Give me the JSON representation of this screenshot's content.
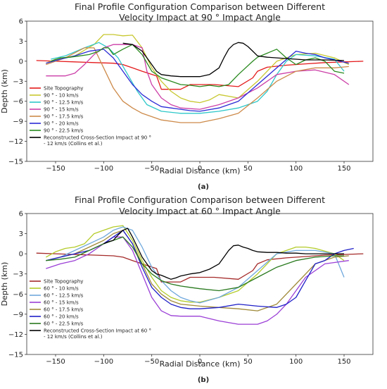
{
  "chart_data": [
    {
      "type": "line",
      "title": "Final Profile Configuration Comparison between Different Velocity Impact at 90 ° Impact Angle",
      "title_lines": [
        "Final Profile Configuration Comparison between Different",
        "Velocity Impact at 90 ° Impact Angle"
      ],
      "xlabel": "Radial Distance (km)",
      "ylabel": "Depth (km)",
      "xlim": [
        -180,
        180
      ],
      "ylim": [
        -15,
        6
      ],
      "xticks": [
        -150,
        -100,
        -50,
        0,
        50,
        100,
        150
      ],
      "yticks": [
        6,
        3,
        0,
        -3,
        -6,
        -9,
        -12,
        -15
      ],
      "grid": false,
      "legend_position": "lower-left",
      "caption": "(a)",
      "series": [
        {
          "name": "Site Topography",
          "color": "#e41a1c",
          "x": [
            -170,
            -150,
            -130,
            -110,
            -90,
            -80,
            -70,
            -60,
            -45,
            -40,
            -20,
            -10,
            15,
            40,
            55,
            60,
            70,
            90,
            110,
            130,
            150,
            170
          ],
          "y": [
            0.1,
            0.0,
            -0.1,
            -0.2,
            -0.3,
            -0.5,
            -1.0,
            -1.5,
            -2.2,
            -4.2,
            -4.2,
            -3.5,
            -3.5,
            -3.8,
            -2.5,
            -1.5,
            -0.9,
            -0.6,
            -0.4,
            -0.2,
            -0.1,
            0.0
          ]
        },
        {
          "name": "90 ° - 10 km/s",
          "color": "#c8c832",
          "x": [
            -160,
            -150,
            -130,
            -110,
            -100,
            -90,
            -80,
            -70,
            -60,
            -50,
            -40,
            -30,
            -20,
            -10,
            0,
            10,
            20,
            40,
            60,
            80,
            100,
            120,
            140,
            155
          ],
          "y": [
            -0.3,
            0.3,
            0.8,
            2.5,
            4.0,
            4.0,
            3.8,
            3.9,
            2.0,
            -1.0,
            -3.0,
            -4.5,
            -5.5,
            -6.0,
            -6.2,
            -5.8,
            -5.0,
            -5.5,
            -3.0,
            0.0,
            1.0,
            1.2,
            0.5,
            -0.5
          ]
        },
        {
          "name": "90 ° - 12.5 km/s",
          "color": "#2ec7c9",
          "x": [
            -155,
            -140,
            -120,
            -105,
            -95,
            -85,
            -75,
            -65,
            -55,
            -40,
            -20,
            0,
            20,
            40,
            60,
            70,
            80,
            90,
            100,
            120,
            140,
            150
          ],
          "y": [
            0.3,
            0.8,
            2.0,
            2.8,
            2.0,
            0.5,
            -2.0,
            -4.5,
            -6.5,
            -7.5,
            -7.8,
            -7.8,
            -7.5,
            -7.0,
            -6.0,
            -4.5,
            -2.0,
            0.0,
            1.0,
            0.8,
            0.3,
            -1.5
          ]
        },
        {
          "name": "90 ° - 15 km/s",
          "color": "#cc3fa8",
          "x": [
            -160,
            -150,
            -140,
            -130,
            -120,
            -110,
            -100,
            -90,
            -80,
            -70,
            -60,
            -55,
            -50,
            -40,
            -30,
            -20,
            0,
            20,
            40,
            60,
            80,
            100,
            120,
            140,
            155
          ],
          "y": [
            -2.2,
            -2.2,
            -2.2,
            -1.8,
            -0.5,
            1.0,
            2.0,
            2.5,
            2.5,
            2.5,
            2.0,
            -1.5,
            -3.5,
            -5.5,
            -6.5,
            -7.0,
            -7.2,
            -6.5,
            -5.5,
            -4.0,
            -2.0,
            -1.5,
            -1.3,
            -2.0,
            -3.5
          ]
        },
        {
          "name": "90 ° - 17.5 km/s",
          "color": "#cd8a4a",
          "x": [
            -160,
            -140,
            -120,
            -110,
            -100,
            -90,
            -80,
            -70,
            -60,
            -40,
            -20,
            0,
            20,
            40,
            60,
            80,
            100,
            120,
            140,
            155
          ],
          "y": [
            -0.5,
            0.5,
            2.0,
            2.0,
            -1.0,
            -4.0,
            -6.0,
            -7.0,
            -7.8,
            -8.8,
            -9.2,
            -9.2,
            -8.6,
            -7.8,
            -5.5,
            -3.0,
            -1.5,
            -1.0,
            -1.0,
            -0.8
          ]
        },
        {
          "name": "90 ° - 20 km/s",
          "color": "#2b2bd6",
          "x": [
            -160,
            -145,
            -130,
            -115,
            -100,
            -90,
            -80,
            -70,
            -60,
            -50,
            -40,
            -30,
            -20,
            -10,
            0,
            20,
            40,
            60,
            80,
            100,
            110,
            120,
            130,
            140,
            155
          ],
          "y": [
            -0.3,
            0.3,
            0.8,
            1.5,
            1.8,
            0.5,
            -1.5,
            -3.5,
            -5.0,
            -6.0,
            -6.8,
            -7.0,
            -7.2,
            -7.4,
            -7.5,
            -7.0,
            -6.0,
            -3.5,
            -1.0,
            1.5,
            1.2,
            1.0,
            0.5,
            0.2,
            -0.3
          ]
        },
        {
          "name": "90 ° - 22.5 km/s",
          "color": "#2a8a1f",
          "x": [
            -155,
            -145,
            -135,
            -125,
            -115,
            -105,
            -100,
            -95,
            -90,
            -80,
            -70,
            -60,
            -50,
            -40,
            -30,
            -20,
            -10,
            0,
            10,
            20,
            30,
            40,
            55,
            60,
            70,
            80,
            90,
            100,
            110,
            120,
            130,
            140,
            150
          ],
          "y": [
            0.0,
            0.5,
            0.6,
            0.8,
            1.0,
            1.5,
            2.0,
            2.0,
            1.0,
            1.8,
            2.5,
            1.0,
            -1.5,
            -2.5,
            -3.0,
            -3.5,
            -3.6,
            -3.8,
            -3.6,
            -3.8,
            -3.5,
            -2.0,
            0.0,
            0.6,
            1.2,
            1.8,
            0.5,
            -0.5,
            0.2,
            0.5,
            0.0,
            -1.5,
            -1.8
          ]
        },
        {
          "name": "Reconstructed Cross-Section Impact at 90 ° - 12 km/s (Collins et al.)",
          "color": "#000000",
          "x": [
            -80,
            -70,
            -60,
            -50,
            -45,
            -40,
            -30,
            -20,
            -10,
            0,
            10,
            20,
            25,
            30,
            35,
            40,
            45,
            50,
            55,
            60,
            70,
            80,
            90,
            100,
            110,
            130,
            150
          ],
          "y": [
            2.7,
            2.5,
            1.5,
            -0.5,
            -1.5,
            -2.0,
            -2.2,
            -2.3,
            -2.3,
            -2.3,
            -2.0,
            -1.0,
            0.5,
            1.8,
            2.5,
            2.8,
            2.7,
            2.2,
            1.5,
            0.8,
            0.6,
            0.5,
            0.4,
            0.3,
            0.2,
            0.2,
            0.1
          ]
        }
      ]
    },
    {
      "type": "line",
      "title": "Final Profile Configuration Comparison between Different Velocity Impact at 60 ° Impact Angle",
      "title_lines": [
        "Final Profile Configuration Comparison between Different",
        "Velocity Impact at 60 ° Impact Angle"
      ],
      "xlabel": "Radial Distance (km)",
      "ylabel": "Depth (km)",
      "xlim": [
        -180,
        180
      ],
      "ylim": [
        -15,
        6
      ],
      "xticks": [
        -150,
        -100,
        -50,
        0,
        50,
        100,
        150
      ],
      "yticks": [
        6,
        3,
        0,
        -3,
        -6,
        -9,
        -12,
        -15
      ],
      "grid": false,
      "legend_position": "lower-left",
      "caption": "(b)",
      "series": [
        {
          "name": "Site Topography",
          "color": "#a52a2a",
          "x": [
            -170,
            -150,
            -130,
            -110,
            -90,
            -80,
            -70,
            -60,
            -45,
            -40,
            -20,
            -10,
            15,
            40,
            55,
            60,
            70,
            90,
            110,
            130,
            150,
            170
          ],
          "y": [
            0.1,
            0.0,
            -0.1,
            -0.2,
            -0.3,
            -0.5,
            -1.0,
            -1.5,
            -2.2,
            -4.2,
            -4.2,
            -3.5,
            -3.5,
            -3.8,
            -2.5,
            -1.5,
            -0.9,
            -0.6,
            -0.4,
            -0.2,
            -0.1,
            0.0
          ]
        },
        {
          "name": "60 ° - 10 km/s",
          "color": "#b4cc2a",
          "x": [
            -160,
            -150,
            -140,
            -130,
            -120,
            -110,
            -100,
            -90,
            -80,
            -70,
            -60,
            -50,
            -40,
            -30,
            -20,
            -10,
            0,
            20,
            40,
            60,
            80,
            100,
            110,
            120,
            140,
            150
          ],
          "y": [
            -0.5,
            0.3,
            0.8,
            1.0,
            1.5,
            3.0,
            3.5,
            4.0,
            4.2,
            2.0,
            -1.0,
            -3.5,
            -5.5,
            -6.5,
            -7.0,
            -7.2,
            -7.2,
            -6.5,
            -5.5,
            -3.0,
            0.0,
            1.0,
            1.0,
            0.8,
            0.0,
            -1.0
          ]
        },
        {
          "name": "60 ° - 12.5 km/s",
          "color": "#6fa8dc",
          "x": [
            -160,
            -145,
            -130,
            -115,
            -100,
            -90,
            -80,
            -70,
            -60,
            -50,
            -40,
            -30,
            -20,
            -10,
            0,
            20,
            40,
            60,
            80,
            100,
            120,
            140,
            150
          ],
          "y": [
            -1.0,
            -0.5,
            0.5,
            1.5,
            2.5,
            3.5,
            4.0,
            3.5,
            1.0,
            -2.0,
            -4.0,
            -5.5,
            -6.5,
            -7.0,
            -7.3,
            -6.5,
            -5.0,
            -2.5,
            0.0,
            0.5,
            0.5,
            0.0,
            -3.5
          ]
        },
        {
          "name": "60 ° - 15 km/s",
          "color": "#9b3fd6",
          "x": [
            -160,
            -145,
            -130,
            -115,
            -100,
            -90,
            -80,
            -70,
            -60,
            -50,
            -40,
            -30,
            -20,
            0,
            20,
            40,
            60,
            70,
            80,
            90,
            100,
            110,
            120,
            130,
            140,
            155
          ],
          "y": [
            -2.2,
            -1.5,
            -1.0,
            0.0,
            1.5,
            2.5,
            2.5,
            0.5,
            -3.0,
            -6.5,
            -8.5,
            -9.2,
            -9.3,
            -9.3,
            -10.0,
            -10.5,
            -10.5,
            -10.0,
            -9.0,
            -7.5,
            -5.5,
            -3.5,
            -2.5,
            -1.5,
            -1.3,
            -1.0
          ]
        },
        {
          "name": "60 ° - 17.5 km/s",
          "color": "#a08a3a",
          "x": [
            -160,
            -145,
            -130,
            -115,
            -100,
            -90,
            -80,
            -70,
            -60,
            -50,
            -40,
            -30,
            -20,
            0,
            20,
            40,
            60,
            80,
            100,
            120,
            140,
            155
          ],
          "y": [
            -1.0,
            -0.5,
            0.0,
            1.0,
            2.0,
            3.0,
            3.5,
            1.5,
            -1.5,
            -4.5,
            -6.0,
            -7.0,
            -7.5,
            -7.8,
            -8.0,
            -8.2,
            -8.5,
            -7.5,
            -4.5,
            -1.5,
            -0.5,
            -0.3
          ]
        },
        {
          "name": "60 ° - 20 km/s",
          "color": "#1f1fc8",
          "x": [
            -160,
            -145,
            -130,
            -115,
            -100,
            -90,
            -80,
            -70,
            -60,
            -50,
            -40,
            -30,
            -20,
            -10,
            0,
            20,
            40,
            60,
            80,
            90,
            100,
            110,
            120,
            130,
            140,
            150,
            160
          ],
          "y": [
            -1.0,
            -0.5,
            0.0,
            0.5,
            1.5,
            2.5,
            3.5,
            1.5,
            -2.0,
            -5.0,
            -6.5,
            -7.5,
            -8.0,
            -8.2,
            -8.2,
            -8.0,
            -7.5,
            -7.8,
            -8.0,
            -7.5,
            -6.5,
            -4.0,
            -1.5,
            -1.0,
            0.0,
            0.5,
            0.8
          ]
        },
        {
          "name": "60 ° - 22.5 km/s",
          "color": "#2a7a1f",
          "x": [
            -160,
            -145,
            -130,
            -115,
            -100,
            -90,
            -80,
            -70,
            -60,
            -50,
            -40,
            -30,
            -20,
            -10,
            0,
            20,
            40,
            60,
            80,
            100,
            120,
            140,
            150
          ],
          "y": [
            -1.0,
            -0.8,
            -0.5,
            0.5,
            1.5,
            2.0,
            2.5,
            1.0,
            -1.5,
            -3.0,
            -4.0,
            -4.5,
            -4.8,
            -5.0,
            -5.2,
            -5.5,
            -5.0,
            -3.5,
            -2.0,
            -1.0,
            -0.5,
            -0.3,
            -0.3
          ]
        },
        {
          "name": "Reconstructed Cross-Section Impact at 60 ° - 12 km/s (Collins et al.)",
          "color": "#000000",
          "x": [
            -100,
            -95,
            -90,
            -85,
            -80,
            -75,
            -70,
            -65,
            -60,
            -55,
            -50,
            -45,
            -40,
            -35,
            -30,
            -25,
            -20,
            -10,
            0,
            10,
            20,
            25,
            30,
            35,
            40,
            45,
            50,
            55,
            60,
            70,
            80,
            90,
            100,
            110,
            130,
            150
          ],
          "y": [
            1.5,
            1.8,
            2.0,
            2.8,
            3.5,
            3.8,
            2.5,
            1.0,
            -0.5,
            -1.5,
            -2.5,
            -3.0,
            -3.2,
            -3.5,
            -3.8,
            -3.6,
            -3.3,
            -3.0,
            -2.8,
            -2.3,
            -1.5,
            -0.5,
            0.5,
            1.2,
            1.3,
            1.0,
            0.8,
            0.5,
            0.3,
            0.2,
            0.2,
            0.1,
            0.1,
            0.0,
            0.0,
            0.0
          ]
        }
      ]
    }
  ]
}
